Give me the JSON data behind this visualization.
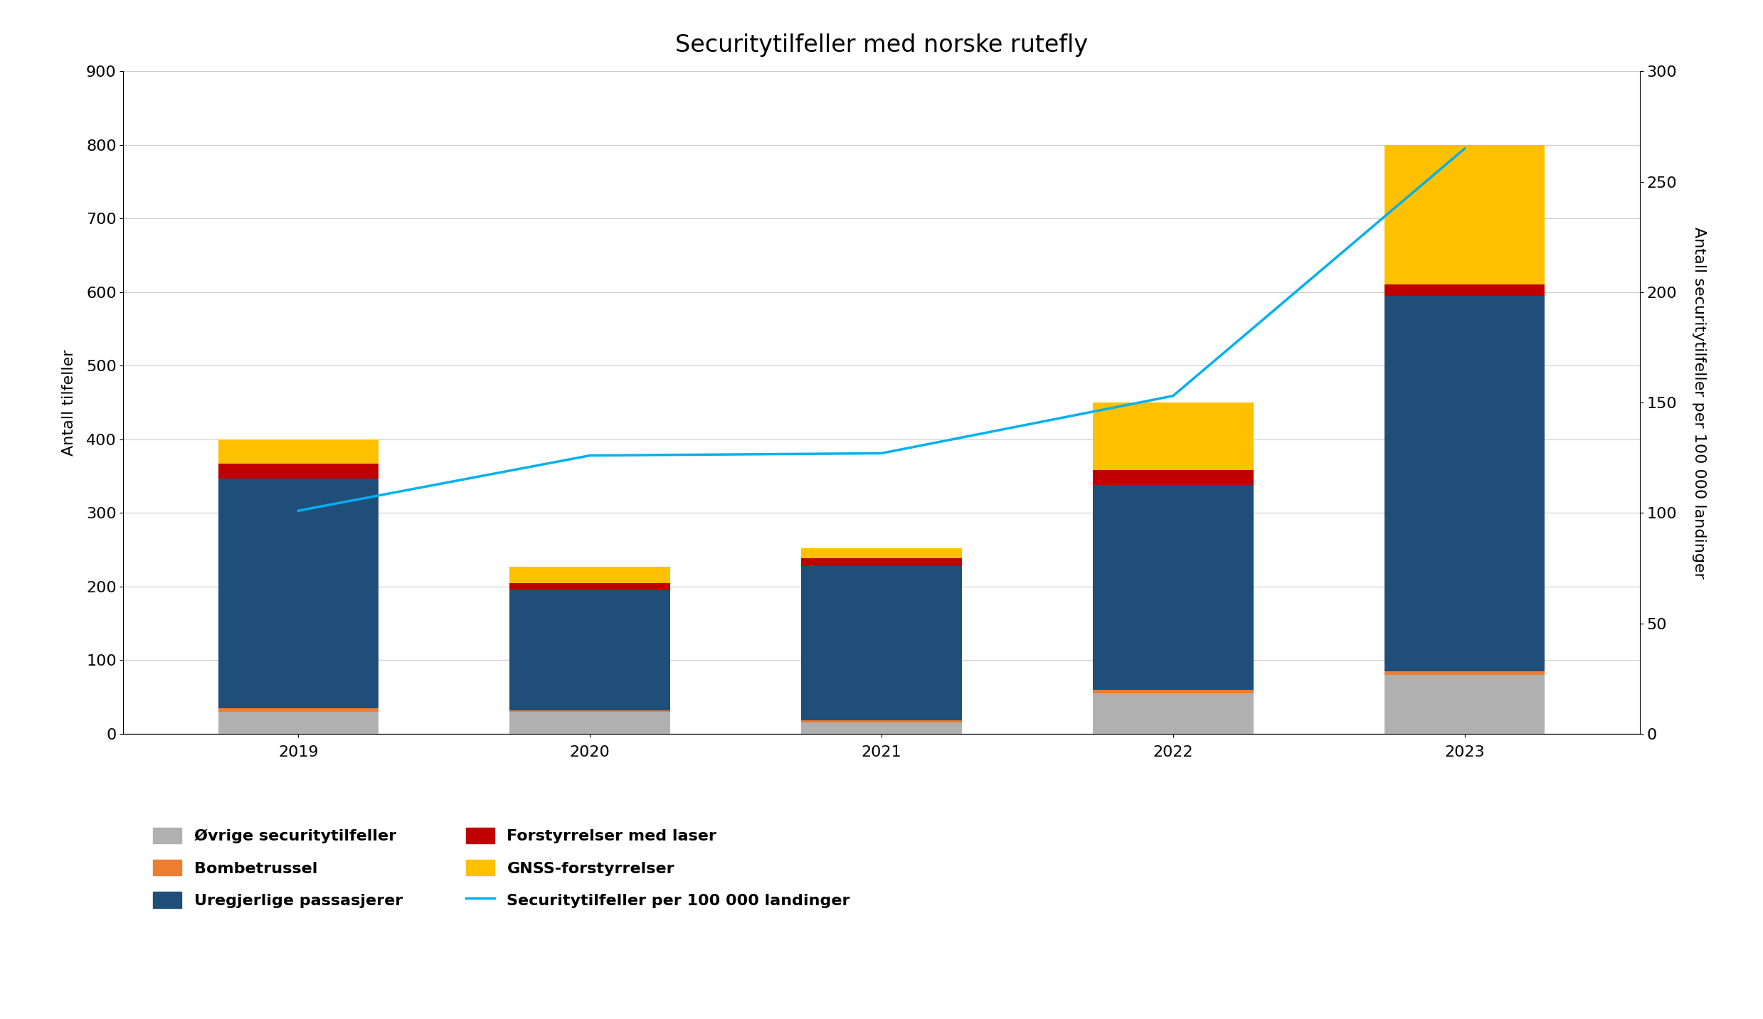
{
  "title": "Securitytilfeller med norske rutefly",
  "years": [
    2019,
    2020,
    2021,
    2022,
    2023
  ],
  "stacks": {
    "ovrige": [
      30,
      30,
      15,
      55,
      80
    ],
    "bombetrussel": [
      5,
      2,
      3,
      5,
      5
    ],
    "uregjerlige": [
      312,
      163,
      210,
      278,
      510
    ],
    "laser": [
      20,
      10,
      10,
      20,
      15
    ],
    "gnss": [
      33,
      22,
      14,
      92,
      190
    ]
  },
  "stack_colors": {
    "ovrige": "#b0b0b0",
    "bombetrussel": "#ed7d31",
    "uregjerlige": "#1f4e79",
    "laser": "#c00000",
    "gnss": "#ffc000"
  },
  "line_values": [
    101,
    126,
    127,
    153,
    265
  ],
  "line_color": "#00b0f0",
  "ylabel_left": "Antall tilfeller",
  "ylabel_right": "Antall securitytilfeller per 100 000 landinger",
  "ylim_left": [
    0,
    900
  ],
  "ylim_right": [
    0,
    300
  ],
  "yticks_left": [
    0,
    100,
    200,
    300,
    400,
    500,
    600,
    700,
    800,
    900
  ],
  "yticks_right": [
    0,
    50,
    100,
    150,
    200,
    250,
    300
  ],
  "legend_labels": {
    "ovrige": "Øvrige securitytilfeller",
    "bombetrussel": "Bombetrussel",
    "uregjerlige": "Uregjerlige passasjerer",
    "laser": "Forstyrrelser med laser",
    "gnss": "GNSS-forstyrrelser",
    "line": "Securitytilfeller per 100 000 landinger"
  },
  "background_color": "#ffffff",
  "bar_width": 0.55,
  "title_fontsize": 24,
  "axis_label_fontsize": 16,
  "tick_fontsize": 16,
  "legend_fontsize": 16
}
